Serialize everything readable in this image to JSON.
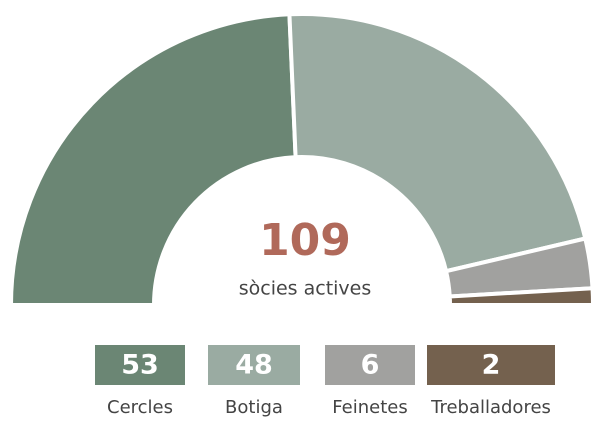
{
  "chart_data": {
    "type": "pie",
    "half": true,
    "categories": [
      "Cercles",
      "Botiga",
      "Feinetes",
      "Treballadores"
    ],
    "values": [
      53,
      48,
      6,
      2
    ],
    "colors": [
      "#6b8674",
      "#9aaba2",
      "#a1a19f",
      "#74614e"
    ],
    "total": 109,
    "total_label": "sòcies actives",
    "total_color": "#b0695a"
  }
}
